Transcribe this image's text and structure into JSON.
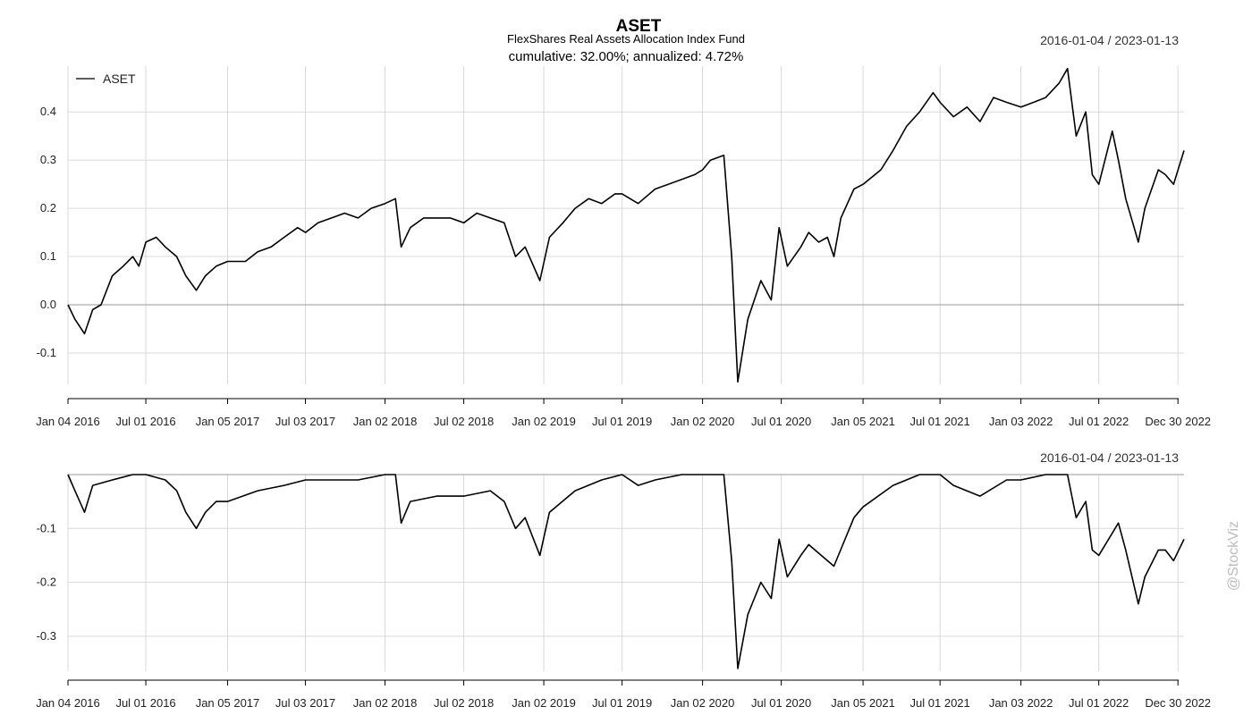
{
  "chart_data": [
    {
      "type": "line",
      "panel": "cumulative-return",
      "title": "ASET",
      "subtitle": "FlexShares Real Assets Allocation Index Fund",
      "stats_text": "cumulative: 32.00%; annualized: 4.72%",
      "date_range_label": "2016-01-04 / 2023-01-13",
      "legend": {
        "position": "top-left",
        "entries": [
          "ASET"
        ]
      },
      "grid": true,
      "xlim": [
        "2016-01-04",
        "2023-01-13"
      ],
      "ylim": [
        -0.165,
        0.495
      ],
      "y_ticks": [
        -0.1,
        0.0,
        0.1,
        0.2,
        0.3,
        0.4
      ],
      "y_tick_labels": [
        "-0.1",
        "0.0",
        "0.1",
        "0.2",
        "0.3",
        "0.4"
      ],
      "x_ticks": [
        {
          "date": "2016-01-04",
          "label": "Jan 04 2016"
        },
        {
          "date": "2016-07-01",
          "label": "Jul 01 2016"
        },
        {
          "date": "2017-01-05",
          "label": "Jan 05 2017"
        },
        {
          "date": "2017-07-03",
          "label": "Jul 03 2017"
        },
        {
          "date": "2018-01-02",
          "label": "Jan 02 2018"
        },
        {
          "date": "2018-07-02",
          "label": "Jul 02 2018"
        },
        {
          "date": "2019-01-02",
          "label": "Jan 02 2019"
        },
        {
          "date": "2019-07-01",
          "label": "Jul 01 2019"
        },
        {
          "date": "2020-01-02",
          "label": "Jan 02 2020"
        },
        {
          "date": "2020-07-01",
          "label": "Jul 01 2020"
        },
        {
          "date": "2021-01-05",
          "label": "Jan 05 2021"
        },
        {
          "date": "2021-07-01",
          "label": "Jul 01 2021"
        },
        {
          "date": "2022-01-03",
          "label": "Jan 03 2022"
        },
        {
          "date": "2022-07-01",
          "label": "Jul 01 2022"
        },
        {
          "date": "2022-12-30",
          "label": "Dec 30 2022"
        }
      ],
      "series": [
        {
          "name": "ASET",
          "x": [
            "2016-01-04",
            "2016-01-20",
            "2016-02-11",
            "2016-03-01",
            "2016-03-20",
            "2016-04-15",
            "2016-05-10",
            "2016-06-01",
            "2016-06-15",
            "2016-07-01",
            "2016-07-25",
            "2016-08-15",
            "2016-09-10",
            "2016-10-01",
            "2016-10-25",
            "2016-11-15",
            "2016-12-10",
            "2017-01-05",
            "2017-02-15",
            "2017-03-15",
            "2017-04-15",
            "2017-05-15",
            "2017-06-15",
            "2017-07-03",
            "2017-08-01",
            "2017-09-01",
            "2017-10-01",
            "2017-11-01",
            "2017-12-01",
            "2018-01-02",
            "2018-01-26",
            "2018-02-08",
            "2018-03-01",
            "2018-04-01",
            "2018-05-01",
            "2018-06-01",
            "2018-07-02",
            "2018-08-01",
            "2018-09-01",
            "2018-10-03",
            "2018-10-29",
            "2018-11-20",
            "2018-12-24",
            "2019-01-15",
            "2019-02-15",
            "2019-03-15",
            "2019-04-15",
            "2019-05-15",
            "2019-06-15",
            "2019-07-01",
            "2019-08-07",
            "2019-09-15",
            "2019-10-15",
            "2019-11-15",
            "2019-12-15",
            "2020-01-02",
            "2020-01-20",
            "2020-02-20",
            "2020-03-09",
            "2020-03-23",
            "2020-04-15",
            "2020-05-15",
            "2020-06-08",
            "2020-06-26",
            "2020-07-15",
            "2020-08-15",
            "2020-09-02",
            "2020-09-25",
            "2020-10-15",
            "2020-10-30",
            "2020-11-15",
            "2020-12-15",
            "2021-01-05",
            "2021-02-15",
            "2021-03-15",
            "2021-04-15",
            "2021-05-15",
            "2021-06-15",
            "2021-07-01",
            "2021-08-01",
            "2021-09-01",
            "2021-10-01",
            "2021-11-01",
            "2021-12-01",
            "2022-01-03",
            "2022-02-01",
            "2022-03-01",
            "2022-04-01",
            "2022-04-20",
            "2022-05-10",
            "2022-06-01",
            "2022-06-16",
            "2022-07-01",
            "2022-08-01",
            "2022-08-15",
            "2022-09-01",
            "2022-09-30",
            "2022-10-15",
            "2022-11-15",
            "2022-12-01",
            "2022-12-20",
            "2023-01-13"
          ],
          "values": [
            0.0,
            -0.03,
            -0.06,
            -0.01,
            0.0,
            0.06,
            0.08,
            0.1,
            0.08,
            0.13,
            0.14,
            0.12,
            0.1,
            0.06,
            0.03,
            0.06,
            0.08,
            0.09,
            0.09,
            0.11,
            0.12,
            0.14,
            0.16,
            0.15,
            0.17,
            0.18,
            0.19,
            0.18,
            0.2,
            0.21,
            0.22,
            0.12,
            0.16,
            0.18,
            0.18,
            0.18,
            0.17,
            0.19,
            0.18,
            0.17,
            0.1,
            0.12,
            0.05,
            0.14,
            0.17,
            0.2,
            0.22,
            0.21,
            0.23,
            0.23,
            0.21,
            0.24,
            0.25,
            0.26,
            0.27,
            0.28,
            0.3,
            0.31,
            0.1,
            -0.16,
            -0.03,
            0.05,
            0.01,
            0.16,
            0.08,
            0.12,
            0.15,
            0.13,
            0.14,
            0.1,
            0.18,
            0.24,
            0.25,
            0.28,
            0.32,
            0.37,
            0.4,
            0.44,
            0.42,
            0.39,
            0.41,
            0.38,
            0.43,
            0.42,
            0.41,
            0.42,
            0.43,
            0.46,
            0.49,
            0.35,
            0.4,
            0.27,
            0.25,
            0.36,
            0.3,
            0.22,
            0.13,
            0.2,
            0.28,
            0.27,
            0.25,
            0.32
          ]
        }
      ]
    },
    {
      "type": "line",
      "panel": "drawdown",
      "date_range_label": "2016-01-04 / 2023-01-13",
      "grid": true,
      "xlim": [
        "2016-01-04",
        "2023-01-13"
      ],
      "ylim": [
        -0.365,
        0.0
      ],
      "y_ticks": [
        -0.1,
        -0.2,
        -0.3
      ],
      "y_tick_labels": [
        "-0.1",
        "-0.2",
        "-0.3"
      ],
      "x_ticks": [
        {
          "date": "2016-01-04",
          "label": "Jan 04 2016"
        },
        {
          "date": "2016-07-01",
          "label": "Jul 01 2016"
        },
        {
          "date": "2017-01-05",
          "label": "Jan 05 2017"
        },
        {
          "date": "2017-07-03",
          "label": "Jul 03 2017"
        },
        {
          "date": "2018-01-02",
          "label": "Jan 02 2018"
        },
        {
          "date": "2018-07-02",
          "label": "Jul 02 2018"
        },
        {
          "date": "2019-01-02",
          "label": "Jan 02 2019"
        },
        {
          "date": "2019-07-01",
          "label": "Jul 01 2019"
        },
        {
          "date": "2020-01-02",
          "label": "Jan 02 2020"
        },
        {
          "date": "2020-07-01",
          "label": "Jul 01 2020"
        },
        {
          "date": "2021-01-05",
          "label": "Jan 05 2021"
        },
        {
          "date": "2021-07-01",
          "label": "Jul 01 2021"
        },
        {
          "date": "2022-01-03",
          "label": "Jan 03 2022"
        },
        {
          "date": "2022-07-01",
          "label": "Jul 01 2022"
        },
        {
          "date": "2022-12-30",
          "label": "Dec 30 2022"
        }
      ],
      "series": [
        {
          "x": [
            "2016-01-04",
            "2016-01-20",
            "2016-02-11",
            "2016-03-01",
            "2016-04-15",
            "2016-06-01",
            "2016-07-01",
            "2016-08-15",
            "2016-09-10",
            "2016-10-01",
            "2016-10-25",
            "2016-11-15",
            "2016-12-10",
            "2017-01-05",
            "2017-03-15",
            "2017-05-15",
            "2017-07-03",
            "2017-09-01",
            "2017-11-01",
            "2018-01-02",
            "2018-01-26",
            "2018-02-08",
            "2018-03-01",
            "2018-05-01",
            "2018-07-02",
            "2018-09-01",
            "2018-10-03",
            "2018-10-29",
            "2018-11-20",
            "2018-12-24",
            "2019-01-15",
            "2019-03-15",
            "2019-05-15",
            "2019-07-01",
            "2019-08-07",
            "2019-09-15",
            "2019-11-15",
            "2020-01-02",
            "2020-02-20",
            "2020-03-09",
            "2020-03-23",
            "2020-04-15",
            "2020-05-15",
            "2020-06-08",
            "2020-06-26",
            "2020-07-15",
            "2020-08-15",
            "2020-09-02",
            "2020-10-30",
            "2020-12-15",
            "2021-01-05",
            "2021-03-15",
            "2021-05-15",
            "2021-07-01",
            "2021-08-01",
            "2021-10-01",
            "2021-12-01",
            "2022-01-03",
            "2022-03-01",
            "2022-04-20",
            "2022-05-10",
            "2022-06-01",
            "2022-06-16",
            "2022-07-01",
            "2022-08-15",
            "2022-09-01",
            "2022-09-30",
            "2022-10-15",
            "2022-11-15",
            "2022-12-01",
            "2022-12-20",
            "2023-01-13"
          ],
          "values": [
            0.0,
            -0.03,
            -0.07,
            -0.02,
            -0.01,
            0.0,
            0.0,
            -0.01,
            -0.03,
            -0.07,
            -0.1,
            -0.07,
            -0.05,
            -0.05,
            -0.03,
            -0.02,
            -0.01,
            -0.01,
            -0.01,
            0.0,
            0.0,
            -0.09,
            -0.05,
            -0.04,
            -0.04,
            -0.03,
            -0.05,
            -0.1,
            -0.08,
            -0.15,
            -0.07,
            -0.03,
            -0.01,
            0.0,
            -0.02,
            -0.01,
            0.0,
            0.0,
            0.0,
            -0.16,
            -0.36,
            -0.26,
            -0.2,
            -0.23,
            -0.12,
            -0.19,
            -0.15,
            -0.13,
            -0.17,
            -0.08,
            -0.06,
            -0.02,
            0.0,
            0.0,
            -0.02,
            -0.04,
            -0.01,
            -0.01,
            0.0,
            0.0,
            -0.08,
            -0.05,
            -0.14,
            -0.15,
            -0.09,
            -0.14,
            -0.24,
            -0.19,
            -0.14,
            -0.14,
            -0.16,
            -0.12
          ]
        }
      ]
    }
  ],
  "watermark": "@StockViz"
}
